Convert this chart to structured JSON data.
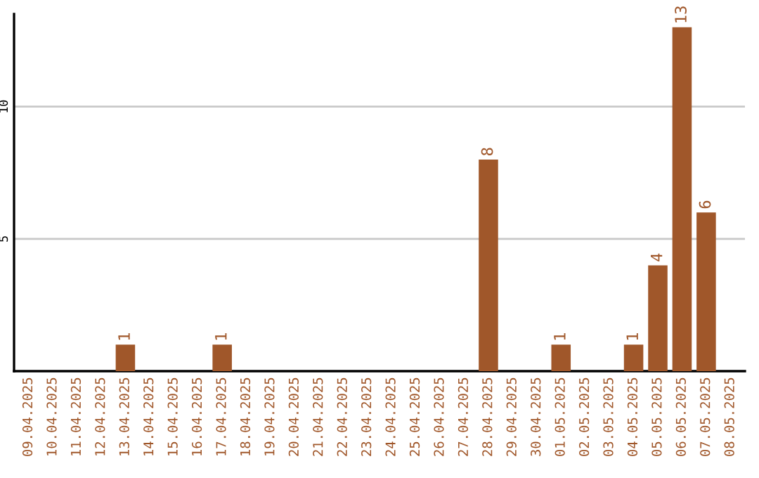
{
  "chart_data": {
    "type": "bar",
    "categories": [
      "09.04.2025",
      "10.04.2025",
      "11.04.2025",
      "12.04.2025",
      "13.04.2025",
      "14.04.2025",
      "15.04.2025",
      "16.04.2025",
      "17.04.2025",
      "18.04.2025",
      "19.04.2025",
      "20.04.2025",
      "21.04.2025",
      "22.04.2025",
      "23.04.2025",
      "24.04.2025",
      "25.04.2025",
      "26.04.2025",
      "27.04.2025",
      "28.04.2025",
      "29.04.2025",
      "30.04.2025",
      "01.05.2025",
      "02.05.2025",
      "03.05.2025",
      "04.05.2025",
      "05.05.2025",
      "06.05.2025",
      "07.05.2025",
      "08.05.2025"
    ],
    "values": [
      0,
      0,
      0,
      0,
      1,
      0,
      0,
      0,
      1,
      0,
      0,
      0,
      0,
      0,
      0,
      0,
      0,
      0,
      0,
      8,
      0,
      0,
      1,
      0,
      0,
      1,
      4,
      13,
      6,
      0
    ],
    "value_labels": [
      null,
      null,
      null,
      null,
      "1",
      null,
      null,
      null,
      "1",
      null,
      null,
      null,
      null,
      null,
      null,
      null,
      null,
      null,
      null,
      "8",
      null,
      null,
      "1",
      null,
      null,
      "1",
      "4",
      "13",
      "6",
      null
    ],
    "color": "#a0572a",
    "ylim": [
      0,
      13.5
    ],
    "yticks": [
      5,
      10
    ],
    "grid": "y"
  }
}
